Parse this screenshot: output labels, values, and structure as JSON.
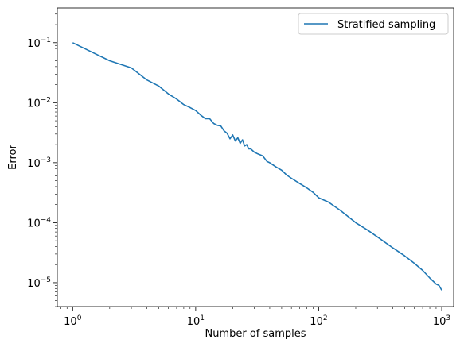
{
  "chart_data": {
    "type": "line",
    "title": "",
    "xlabel": "Number of samples",
    "ylabel": "Error",
    "xscale": "log",
    "yscale": "log",
    "xlim": [
      0.75,
      1250
    ],
    "ylim": [
      4e-06,
      0.38
    ],
    "grid": false,
    "legend_position": "top-right",
    "x_ticks": [
      {
        "value": 1,
        "base": "10",
        "exp": "0"
      },
      {
        "value": 10,
        "base": "10",
        "exp": "1"
      },
      {
        "value": 100,
        "base": "10",
        "exp": "2"
      },
      {
        "value": 1000,
        "base": "10",
        "exp": "3"
      }
    ],
    "y_ticks": [
      {
        "value": 1e-05,
        "base": "10",
        "exp": "−5"
      },
      {
        "value": 0.0001,
        "base": "10",
        "exp": "−4"
      },
      {
        "value": 0.001,
        "base": "10",
        "exp": "−3"
      },
      {
        "value": 0.01,
        "base": "10",
        "exp": "−2"
      },
      {
        "value": 0.1,
        "base": "10",
        "exp": "−1"
      }
    ],
    "series": [
      {
        "name": "Stratified sampling",
        "color": "#1f77b4",
        "x": [
          1,
          2,
          3,
          4,
          5,
          6,
          7,
          8,
          9,
          10,
          11,
          12,
          13,
          14,
          15,
          16,
          17,
          18,
          19,
          20,
          21,
          22,
          23,
          24,
          25,
          26,
          27,
          28,
          30,
          32,
          35,
          38,
          40,
          45,
          50,
          55,
          60,
          70,
          80,
          90,
          100,
          120,
          150,
          200,
          250,
          300,
          400,
          500,
          600,
          700,
          800,
          900,
          950,
          1000
        ],
        "y": [
          0.1,
          0.05,
          0.038,
          0.024,
          0.019,
          0.014,
          0.0115,
          0.0093,
          0.0083,
          0.0074,
          0.0062,
          0.0054,
          0.0054,
          0.0045,
          0.0042,
          0.0041,
          0.0034,
          0.0031,
          0.0025,
          0.0029,
          0.0023,
          0.0026,
          0.0021,
          0.0024,
          0.0019,
          0.002,
          0.0017,
          0.0017,
          0.0015,
          0.0014,
          0.0013,
          0.00105,
          0.001,
          0.00085,
          0.00075,
          0.00062,
          0.00055,
          0.00045,
          0.00038,
          0.00032,
          0.00026,
          0.00022,
          0.00016,
          0.0001,
          7.5e-05,
          5.8e-05,
          3.8e-05,
          2.8e-05,
          2.1e-05,
          1.6e-05,
          1.2e-05,
          9.5e-06,
          9e-06,
          7.5e-06
        ]
      }
    ]
  }
}
